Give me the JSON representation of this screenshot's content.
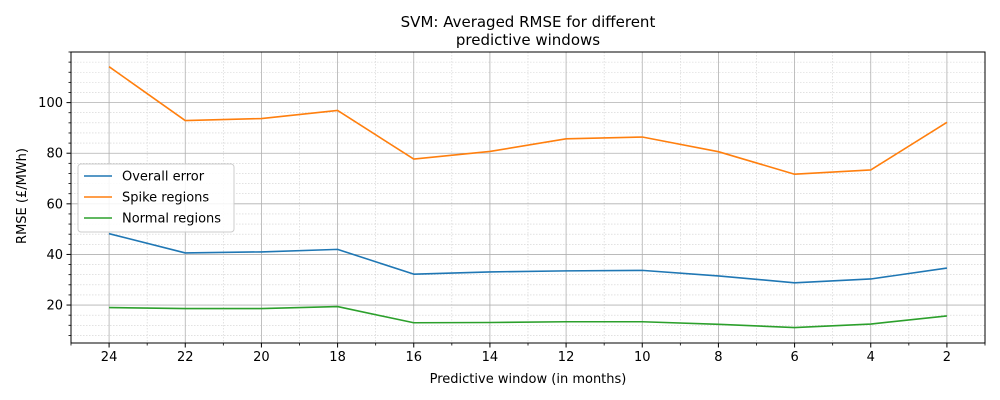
{
  "chart_data": {
    "type": "line",
    "title_line1": "SVM: Averaged RMSE for different",
    "title_line2": "predictive windows",
    "xlabel": "Predictive window (in months)",
    "ylabel": "RMSE (£/MWh)",
    "x": [
      24,
      22,
      20,
      18,
      16,
      14,
      12,
      10,
      8,
      6,
      4,
      2
    ],
    "xlim": [
      25,
      1
    ],
    "ylim": [
      5,
      120
    ],
    "x_ticks": [
      24,
      22,
      20,
      18,
      16,
      14,
      12,
      10,
      8,
      6,
      4,
      2
    ],
    "y_ticks": [
      20,
      40,
      60,
      80,
      100
    ],
    "grid": true,
    "legend_position": "center-left",
    "series": [
      {
        "name": "Overall error",
        "color": "#1f77b4",
        "values": [
          48.2,
          40.6,
          41.0,
          42.0,
          32.2,
          33.1,
          33.5,
          33.7,
          31.5,
          28.8,
          30.3,
          34.6
        ]
      },
      {
        "name": "Spike regions",
        "color": "#ff7f0e",
        "values": [
          114.2,
          92.9,
          93.7,
          96.9,
          77.7,
          80.7,
          85.7,
          86.4,
          80.6,
          71.7,
          73.4,
          92.2
        ]
      },
      {
        "name": "Normal regions",
        "color": "#2ca02c",
        "values": [
          19.0,
          18.6,
          18.6,
          19.4,
          13.0,
          13.1,
          13.4,
          13.4,
          12.4,
          11.1,
          12.5,
          15.7
        ]
      }
    ]
  }
}
